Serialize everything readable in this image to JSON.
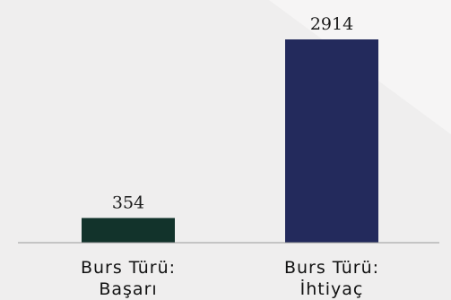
{
  "chart_data": {
    "type": "bar",
    "categories": [
      [
        "Burs Türü:",
        "Başarı"
      ],
      [
        "Burs Türü:",
        "İhtiyaç"
      ]
    ],
    "values": [
      354,
      2914
    ],
    "value_labels": [
      "354",
      "2914"
    ],
    "colors": [
      "#12332b",
      "#232a5c"
    ],
    "ylim": [
      0,
      2914
    ],
    "grid": false,
    "legend": "none"
  }
}
